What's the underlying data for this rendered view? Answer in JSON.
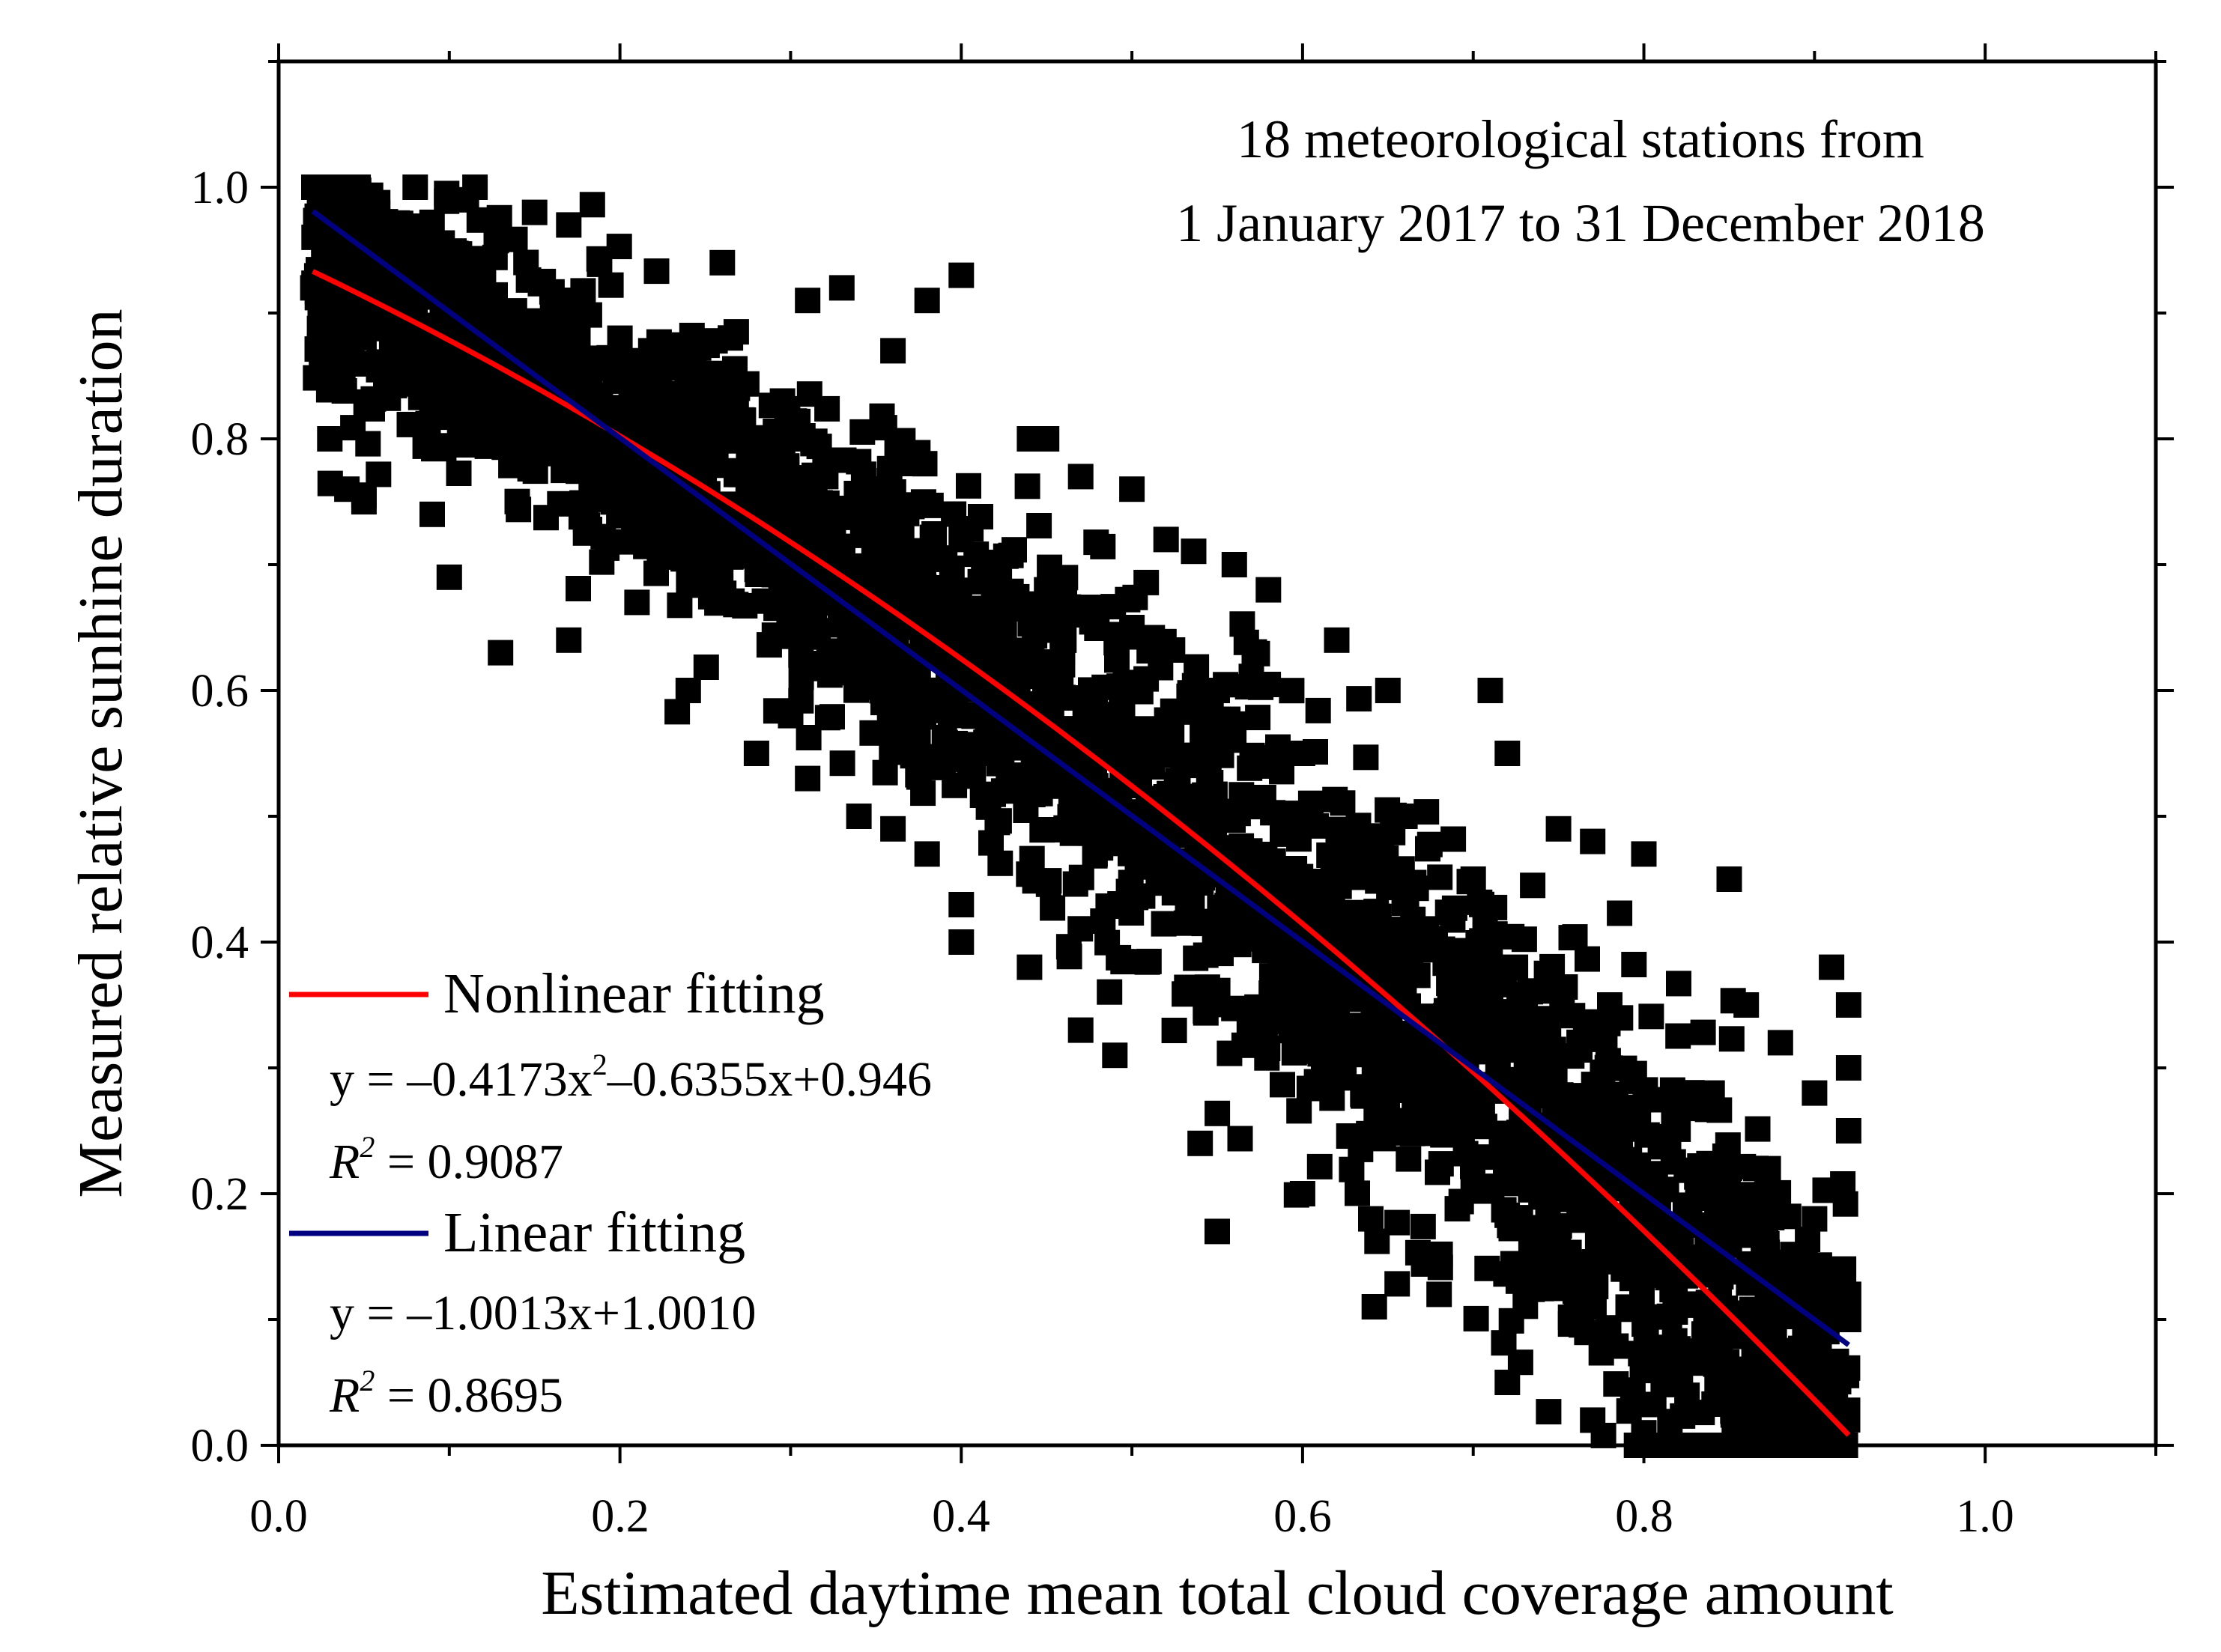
{
  "chart_data": {
    "type": "scatter",
    "title": "",
    "annotation": {
      "line1": "18 meteorological stations from",
      "line2": "1 January 2017 to 31 December 2018"
    },
    "xlabel": "Estimated daytime mean total cloud coverage amount",
    "ylabel": "Measured relative sunhine duration",
    "xlim": [
      0.0,
      1.1
    ],
    "ylim": [
      0.0,
      1.1
    ],
    "x_ticks": [
      "0.0",
      "0.2",
      "0.4",
      "0.6",
      "0.8",
      "1.0"
    ],
    "y_ticks": [
      "0.0",
      "0.2",
      "0.4",
      "0.6",
      "0.8",
      "1.0"
    ],
    "x_tick_values": [
      0.0,
      0.2,
      0.4,
      0.6,
      0.8,
      1.0
    ],
    "y_tick_values": [
      0.0,
      0.2,
      0.4,
      0.6,
      0.8,
      1.0
    ],
    "marker": "square",
    "marker_color": "#000000",
    "scatter_envelope": {
      "x_range": [
        0.02,
        0.92
      ],
      "note": "dense cloud of several thousand points between the two fitted lines"
    },
    "sample_points": [
      [
        0.08,
        1.0
      ],
      [
        0.11,
        0.99
      ],
      [
        0.15,
        0.98
      ],
      [
        0.04,
        0.97
      ],
      [
        0.17,
        0.97
      ],
      [
        0.06,
        0.95
      ],
      [
        0.12,
        0.93
      ],
      [
        0.26,
        0.94
      ],
      [
        0.33,
        0.92
      ],
      [
        0.31,
        0.91
      ],
      [
        0.38,
        0.91
      ],
      [
        0.4,
        0.93
      ],
      [
        0.1,
        0.9
      ],
      [
        0.2,
        0.88
      ],
      [
        0.36,
        0.87
      ],
      [
        0.03,
        0.8
      ],
      [
        0.04,
        0.76
      ],
      [
        0.05,
        0.75
      ],
      [
        0.09,
        0.74
      ],
      [
        0.1,
        0.69
      ],
      [
        0.13,
        0.63
      ],
      [
        0.17,
        0.64
      ],
      [
        0.21,
        0.67
      ],
      [
        0.24,
        0.6
      ],
      [
        0.28,
        0.55
      ],
      [
        0.31,
        0.53
      ],
      [
        0.34,
        0.5
      ],
      [
        0.3,
        0.58
      ],
      [
        0.44,
        0.8
      ],
      [
        0.45,
        0.8
      ],
      [
        0.47,
        0.77
      ],
      [
        0.5,
        0.76
      ],
      [
        0.52,
        0.72
      ],
      [
        0.56,
        0.7
      ],
      [
        0.58,
        0.68
      ],
      [
        0.62,
        0.64
      ],
      [
        0.65,
        0.6
      ],
      [
        0.71,
        0.6
      ],
      [
        0.72,
        0.55
      ],
      [
        0.75,
        0.49
      ],
      [
        0.77,
        0.48
      ],
      [
        0.8,
        0.47
      ],
      [
        0.85,
        0.45
      ],
      [
        0.86,
        0.35
      ],
      [
        0.88,
        0.32
      ],
      [
        0.91,
        0.38
      ],
      [
        0.92,
        0.35
      ],
      [
        0.92,
        0.3
      ],
      [
        0.9,
        0.28
      ],
      [
        0.92,
        0.25
      ],
      [
        0.9,
        0.18
      ],
      [
        0.92,
        0.12
      ],
      [
        0.92,
        0.1
      ],
      [
        0.89,
        0.06
      ],
      [
        0.87,
        0.02
      ],
      [
        0.8,
        0.01
      ],
      [
        0.77,
        0.02
      ],
      [
        0.72,
        0.05
      ],
      [
        0.68,
        0.12
      ],
      [
        0.64,
        0.18
      ],
      [
        0.6,
        0.2
      ],
      [
        0.54,
        0.24
      ],
      [
        0.55,
        0.17
      ],
      [
        0.49,
        0.31
      ],
      [
        0.47,
        0.33
      ],
      [
        0.44,
        0.38
      ],
      [
        0.4,
        0.4
      ],
      [
        0.38,
        0.47
      ],
      [
        0.36,
        0.49
      ],
      [
        0.42,
        0.55
      ],
      [
        0.48,
        0.5
      ],
      [
        0.52,
        0.45
      ],
      [
        0.58,
        0.4
      ],
      [
        0.63,
        0.33
      ],
      [
        0.7,
        0.28
      ],
      [
        0.75,
        0.22
      ],
      [
        0.82,
        0.15
      ],
      [
        0.84,
        0.28
      ],
      [
        0.78,
        0.35
      ],
      [
        0.7,
        0.45
      ],
      [
        0.66,
        0.5
      ],
      [
        0.6,
        0.55
      ],
      [
        0.55,
        0.6
      ],
      [
        0.5,
        0.65
      ],
      [
        0.45,
        0.68
      ],
      [
        0.4,
        0.72
      ],
      [
        0.35,
        0.76
      ],
      [
        0.3,
        0.8
      ],
      [
        0.25,
        0.83
      ],
      [
        0.2,
        0.85
      ],
      [
        0.15,
        0.88
      ],
      [
        0.1,
        0.86
      ],
      [
        0.05,
        0.88
      ],
      [
        0.02,
        0.92
      ],
      [
        0.03,
        0.95
      ]
    ],
    "series": [
      {
        "name": "Nonlinear fitting",
        "kind": "line",
        "color": "#ff0000",
        "equation": "y = –0.4173x",
        "equation_exp": "2",
        "equation_tail": "–0.6355x+0.946",
        "r2_label": "R",
        "r2_exp": "2",
        "r2_value": " = 0.9087",
        "coefficients": {
          "a": -0.4173,
          "b": -0.6355,
          "c": 0.946
        },
        "x_range": [
          0.02,
          0.92
        ]
      },
      {
        "name": "Linear fitting",
        "kind": "line",
        "color": "#000080",
        "equation": "y = –1.0013x+1.0010",
        "r2_label": "R",
        "r2_exp": "2",
        "r2_value": " = 0.8695",
        "coefficients": {
          "a": 0,
          "b": -1.0013,
          "c": 1.001
        },
        "x_range": [
          0.02,
          0.92
        ]
      }
    ],
    "legend_position": "bottom-left"
  }
}
